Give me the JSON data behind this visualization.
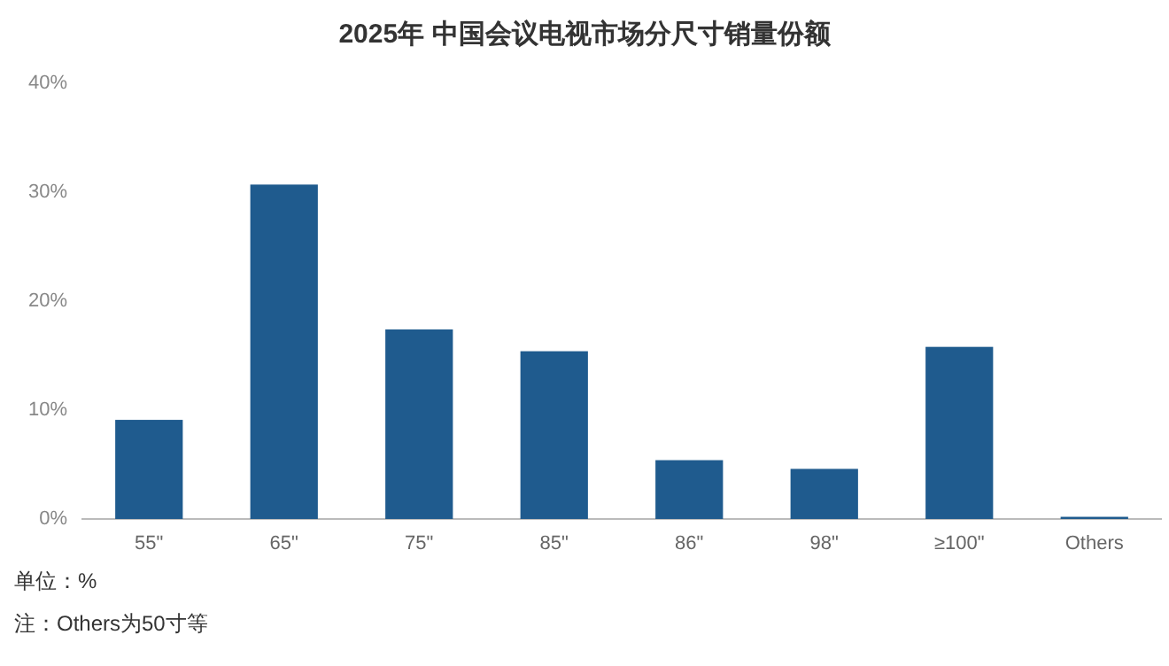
{
  "chart_data": {
    "type": "bar",
    "title": "2025年 中国会议电视市场分尺寸销量份额",
    "categories": [
      "55\"",
      "65\"",
      "75\"",
      "85\"",
      "86\"",
      "98\"",
      "≥100\"",
      "Others"
    ],
    "values": [
      9.1,
      30.7,
      17.4,
      15.4,
      5.4,
      4.6,
      15.8,
      0.2
    ],
    "color": "#1f5b8e",
    "ylim": [
      0,
      40
    ],
    "yticks": [
      {
        "value": 0,
        "label": "0%"
      },
      {
        "value": 10,
        "label": "10%"
      },
      {
        "value": 20,
        "label": "20%"
      },
      {
        "value": 30,
        "label": "30%"
      },
      {
        "value": 40,
        "label": "40%"
      }
    ],
    "grid": false,
    "annotations": [
      "单位：%",
      "注：Others为50寸等"
    ]
  }
}
